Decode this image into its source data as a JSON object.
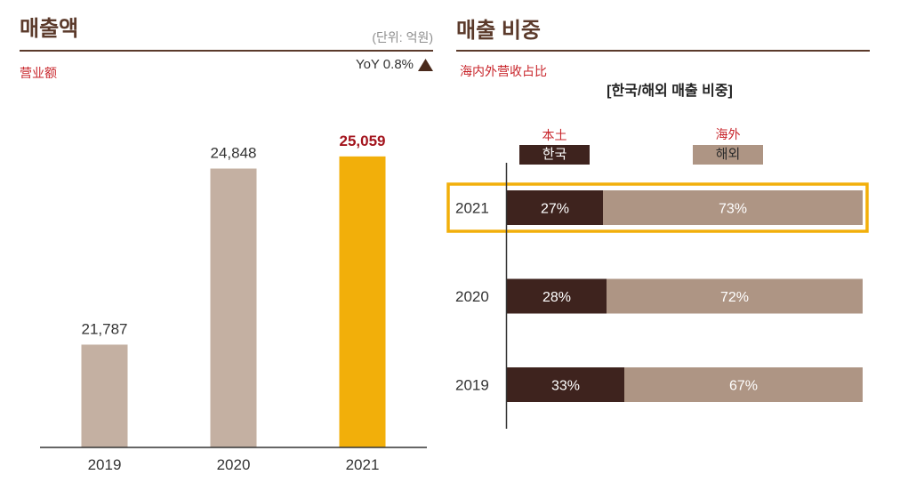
{
  "colors": {
    "title": "#5B3A2B",
    "accent_red": "#C8252B",
    "bar": "#C4B0A2",
    "highlight_bar": "#F2AF0A",
    "highlight_value": "#A3141D",
    "korea": "#3E231E",
    "overseas": "#AE9584",
    "highlight_frame": "#F2AF0A",
    "legend_overseas_text": "#2B2B2B"
  },
  "chart_data": [
    {
      "type": "bar",
      "title": "매출액",
      "subtitle": "营业额",
      "unit": "(단위: 억원)",
      "annotation": "YoY 0.8%",
      "annotation_icon": "triangle-up-icon",
      "categories": [
        "2019",
        "2020",
        "2021"
      ],
      "values": [
        21787,
        24848,
        25059
      ],
      "data_labels": [
        "21,787",
        "24,848",
        "25,059"
      ],
      "highlight_index": 2,
      "ylim": [
        20000,
        26000
      ],
      "grid": false
    },
    {
      "type": "bar",
      "orientation": "horizontal",
      "stacked": true,
      "title": "매출 비중",
      "subtitle": "海内外营收占比",
      "heading": "[한국/해외 매출 비중]",
      "categories": [
        "2021",
        "2020",
        "2019"
      ],
      "series": [
        {
          "name": "한국",
          "legend_caption": "本土",
          "values": [
            27,
            28,
            33
          ],
          "data_labels": [
            "27%",
            "28%",
            "33%"
          ]
        },
        {
          "name": "해외",
          "legend_caption": "海外",
          "values": [
            73,
            72,
            67
          ],
          "data_labels": [
            "73%",
            "72%",
            "67%"
          ]
        }
      ],
      "highlight_index": 0,
      "xlim": [
        0,
        100
      ],
      "grid": false
    }
  ]
}
